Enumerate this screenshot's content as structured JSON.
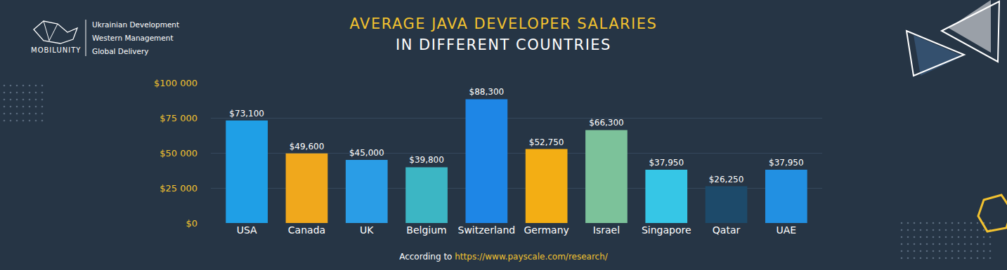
{
  "chart_data": {
    "type": "bar",
    "title": "AVERAGE JAVA DEVELOPER SALARIES",
    "subtitle": "IN DIFFERENT COUNTRIES",
    "categories": [
      "USA",
      "Canada",
      "UK",
      "Belgium",
      "Switzerland",
      "Germany",
      "Israel",
      "Singapore",
      "Qatar",
      "UAE"
    ],
    "values": [
      73100,
      49600,
      45000,
      39800,
      88300,
      52750,
      66300,
      37950,
      26250,
      37950
    ],
    "value_labels": [
      "$73,100",
      "$49,600",
      "$45,000",
      "$39,800",
      "$88,300",
      "$52,750",
      "$66,300",
      "$37,950",
      "$26,250",
      "$37,950"
    ],
    "colors": [
      "#1f9fe6",
      "#f0a81c",
      "#2a9de6",
      "#3cb6c4",
      "#1e86e6",
      "#f3ae14",
      "#7cc29a",
      "#36c6e6",
      "#1d4a6a",
      "#2290e2"
    ],
    "ylim": [
      0,
      100000
    ],
    "yticks": [
      {
        "value": 0,
        "label": "$0"
      },
      {
        "value": 25000,
        "label": "$25 000"
      },
      {
        "value": 50000,
        "label": "$50 000"
      },
      {
        "value": 75000,
        "label": "$75 000"
      },
      {
        "value": 100000,
        "label": "$100 000"
      }
    ],
    "grid": true,
    "data_labels": true,
    "source": {
      "prefix": "According to",
      "url": "https://www.payscale.com/research/"
    }
  },
  "branding": {
    "name": "MOBILUNITY",
    "lines": [
      "Ukrainian Development",
      "Western Management",
      "Global Delivery"
    ]
  }
}
